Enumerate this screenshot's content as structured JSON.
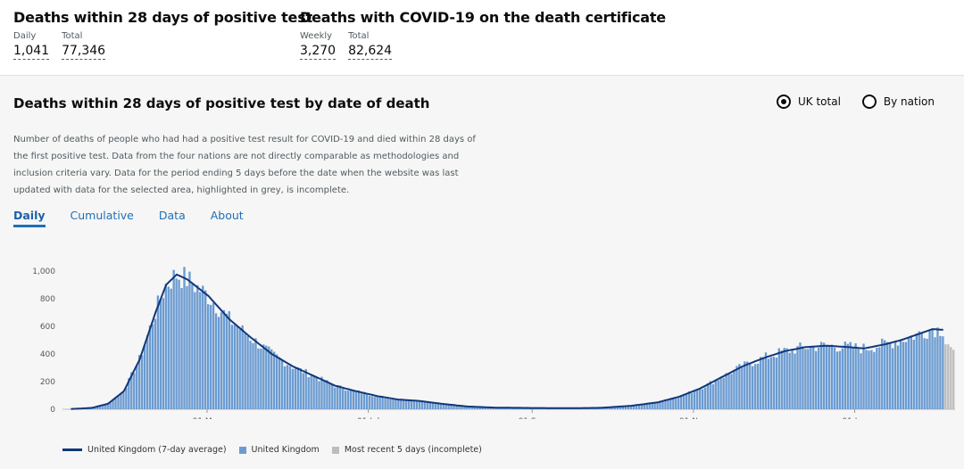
{
  "header": {
    "deaths28": {
      "title": "Deaths within 28 days of positive test",
      "stats": [
        {
          "label": "Daily",
          "value": "1,041"
        },
        {
          "label": "Total",
          "value": "77,346"
        }
      ]
    },
    "certificate": {
      "title": "Deaths with COVID-19 on the death certificate",
      "stats": [
        {
          "label": "Weekly",
          "value": "3,270"
        },
        {
          "label": "Total",
          "value": "82,624"
        }
      ]
    }
  },
  "panel": {
    "title": "Deaths within 28 days of positive test by date of death",
    "radio_uk": "UK total",
    "radio_nation": "By nation",
    "description": "Number of deaths of people who had had a positive test result for COVID-19 and died within 28 days of the first positive test. Data from the four nations are not directly comparable as methodologies and inclusion criteria vary. Data for the period ending 5 days before the date when the website was last updated with data for the selected area, highlighted in grey, is incomplete.",
    "tabs": [
      "Daily",
      "Cumulative",
      "Data",
      "About"
    ]
  },
  "colors": {
    "bar": "#6b9bd1",
    "line": "#12377a",
    "incomplete": "#bdbdbd",
    "link": "#1d70b8"
  },
  "chart_data": {
    "type": "bar",
    "x_ticks": [
      "01 May",
      "01 Jul",
      "01 Sep",
      "01 Nov",
      "01 Jan"
    ],
    "ylim": [
      0,
      1000
    ],
    "y_ticks": [
      "0",
      "200",
      "400",
      "600",
      "800",
      "1,000"
    ],
    "series": [
      {
        "name": "United Kingdom (7-day average)",
        "type": "line"
      },
      {
        "name": "United Kingdom",
        "type": "bar"
      },
      {
        "name": "Most recent 5 days (incomplete)",
        "type": "bar"
      }
    ],
    "daily_profile": [
      {
        "day": 0,
        "value": 2
      },
      {
        "day": 8,
        "value": 10
      },
      {
        "day": 14,
        "value": 40
      },
      {
        "day": 20,
        "value": 130
      },
      {
        "day": 26,
        "value": 360
      },
      {
        "day": 32,
        "value": 700
      },
      {
        "day": 36,
        "value": 900
      },
      {
        "day": 40,
        "value": 975
      },
      {
        "day": 44,
        "value": 940
      },
      {
        "day": 52,
        "value": 820
      },
      {
        "day": 60,
        "value": 650
      },
      {
        "day": 68,
        "value": 520
      },
      {
        "day": 76,
        "value": 400
      },
      {
        "day": 84,
        "value": 310
      },
      {
        "day": 92,
        "value": 240
      },
      {
        "day": 100,
        "value": 170
      },
      {
        "day": 108,
        "value": 130
      },
      {
        "day": 116,
        "value": 95
      },
      {
        "day": 124,
        "value": 70
      },
      {
        "day": 132,
        "value": 60
      },
      {
        "day": 140,
        "value": 40
      },
      {
        "day": 150,
        "value": 20
      },
      {
        "day": 160,
        "value": 12
      },
      {
        "day": 175,
        "value": 9
      },
      {
        "day": 190,
        "value": 8
      },
      {
        "day": 200,
        "value": 10
      },
      {
        "day": 212,
        "value": 25
      },
      {
        "day": 222,
        "value": 50
      },
      {
        "day": 230,
        "value": 90
      },
      {
        "day": 238,
        "value": 150
      },
      {
        "day": 246,
        "value": 230
      },
      {
        "day": 254,
        "value": 310
      },
      {
        "day": 262,
        "value": 370
      },
      {
        "day": 270,
        "value": 420
      },
      {
        "day": 278,
        "value": 450
      },
      {
        "day": 286,
        "value": 460
      },
      {
        "day": 294,
        "value": 450
      },
      {
        "day": 300,
        "value": 440
      },
      {
        "day": 308,
        "value": 470
      },
      {
        "day": 314,
        "value": 500
      },
      {
        "day": 320,
        "value": 540
      },
      {
        "day": 326,
        "value": 580
      },
      {
        "day": 330,
        "value": 575
      }
    ]
  }
}
